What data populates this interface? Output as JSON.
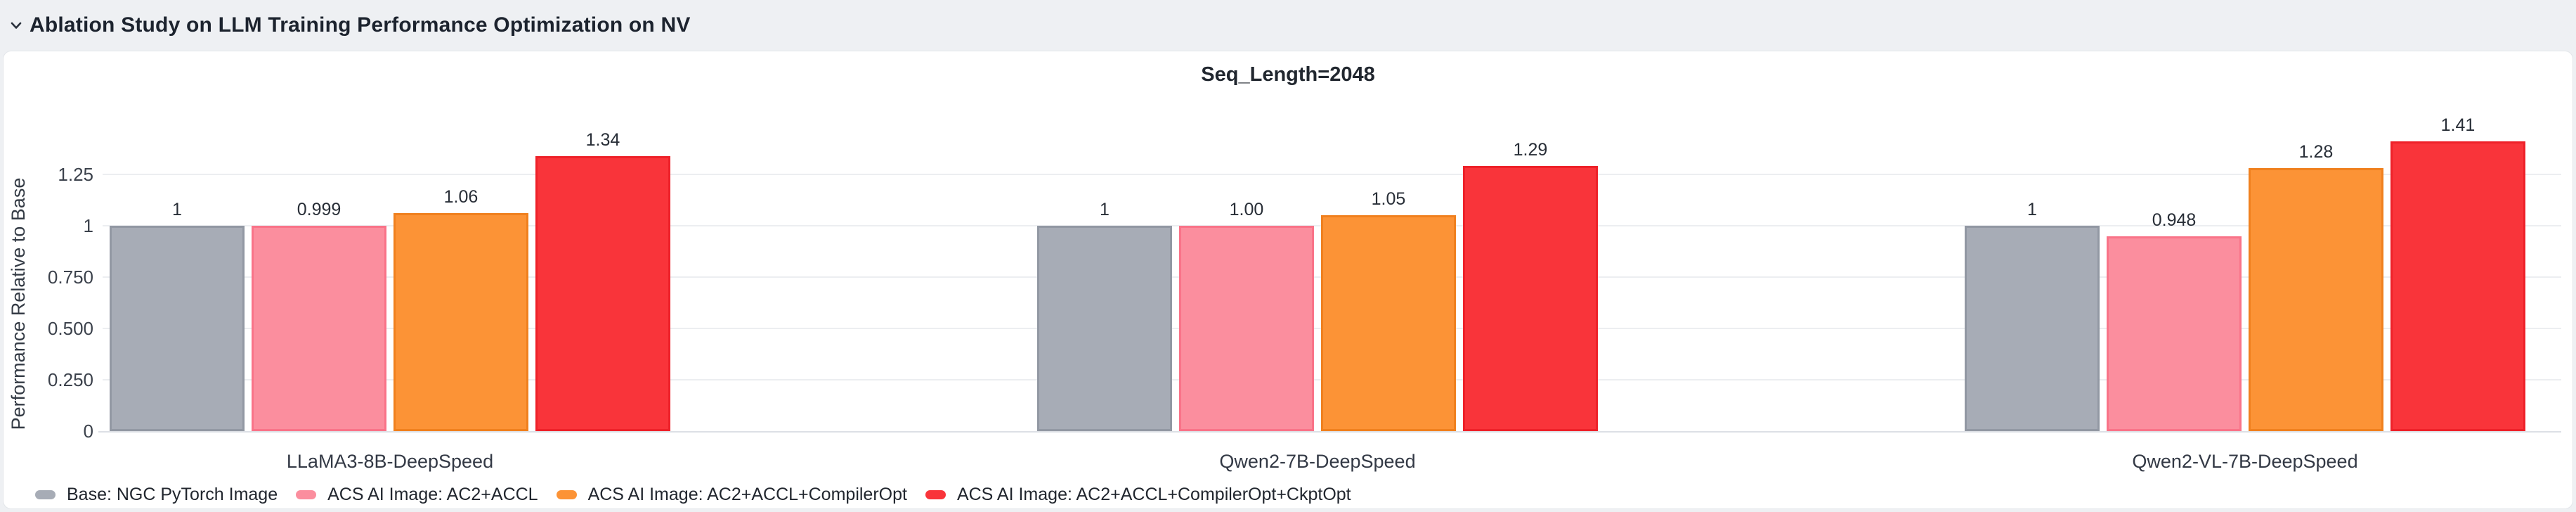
{
  "panel": {
    "title": "Ablation Study on LLM Training Performance Optimization on NV",
    "collapse_icon": "chevron-down"
  },
  "chart_data": {
    "type": "bar",
    "title": "Seq_Length=2048",
    "xlabel": "",
    "ylabel": "Performance Relative to Base",
    "categories": [
      "LLaMA3-8B-DeepSpeed",
      "Qwen2-7B-DeepSpeed",
      "Qwen2-VL-7B-DeepSpeed"
    ],
    "series": [
      {
        "name": "Base: NGC PyTorch Image",
        "color": "#a7acb6",
        "border_color": "#9298a3",
        "values": [
          1,
          1,
          1
        ],
        "value_labels": [
          "1",
          "1",
          "1"
        ]
      },
      {
        "name": "ACS AI Image: AC2+ACCL",
        "color": "#fb8e9e",
        "border_color": "#f97388",
        "values": [
          0.999,
          1.0,
          0.948
        ],
        "value_labels": [
          "0.999",
          "1.00",
          "0.948"
        ]
      },
      {
        "name": "ACS AI Image: AC2+ACCL+CompilerOpt",
        "color": "#fc9336",
        "border_color": "#f0801e",
        "values": [
          1.06,
          1.05,
          1.28
        ],
        "value_labels": [
          "1.06",
          "1.05",
          "1.28"
        ]
      },
      {
        "name": "ACS AI Image: AC2+ACCL+CompilerOpt+CkptOpt",
        "color": "#f9343a",
        "border_color": "#ee2129",
        "values": [
          1.34,
          1.29,
          1.41
        ],
        "value_labels": [
          "1.34",
          "1.29",
          "1.41"
        ]
      }
    ],
    "y_ticks": [
      {
        "value": 0,
        "label": "0"
      },
      {
        "value": 0.25,
        "label": "0.250"
      },
      {
        "value": 0.5,
        "label": "0.500"
      },
      {
        "value": 0.75,
        "label": "0.750"
      },
      {
        "value": 1,
        "label": "1"
      },
      {
        "value": 1.25,
        "label": "1.25"
      }
    ],
    "ylim": [
      0,
      1.55
    ],
    "grid": true,
    "legend_position": "bottom-left"
  },
  "colors": {
    "page_bg": "#eef0f3",
    "card_bg": "#ffffff",
    "card_border": "#e3e6ea",
    "title_text": "#1c232e",
    "axis_text": "#3c424c",
    "grid_line": "#eceef1",
    "axis_line": "#dde0e5",
    "value_label_text": "#282e37"
  }
}
